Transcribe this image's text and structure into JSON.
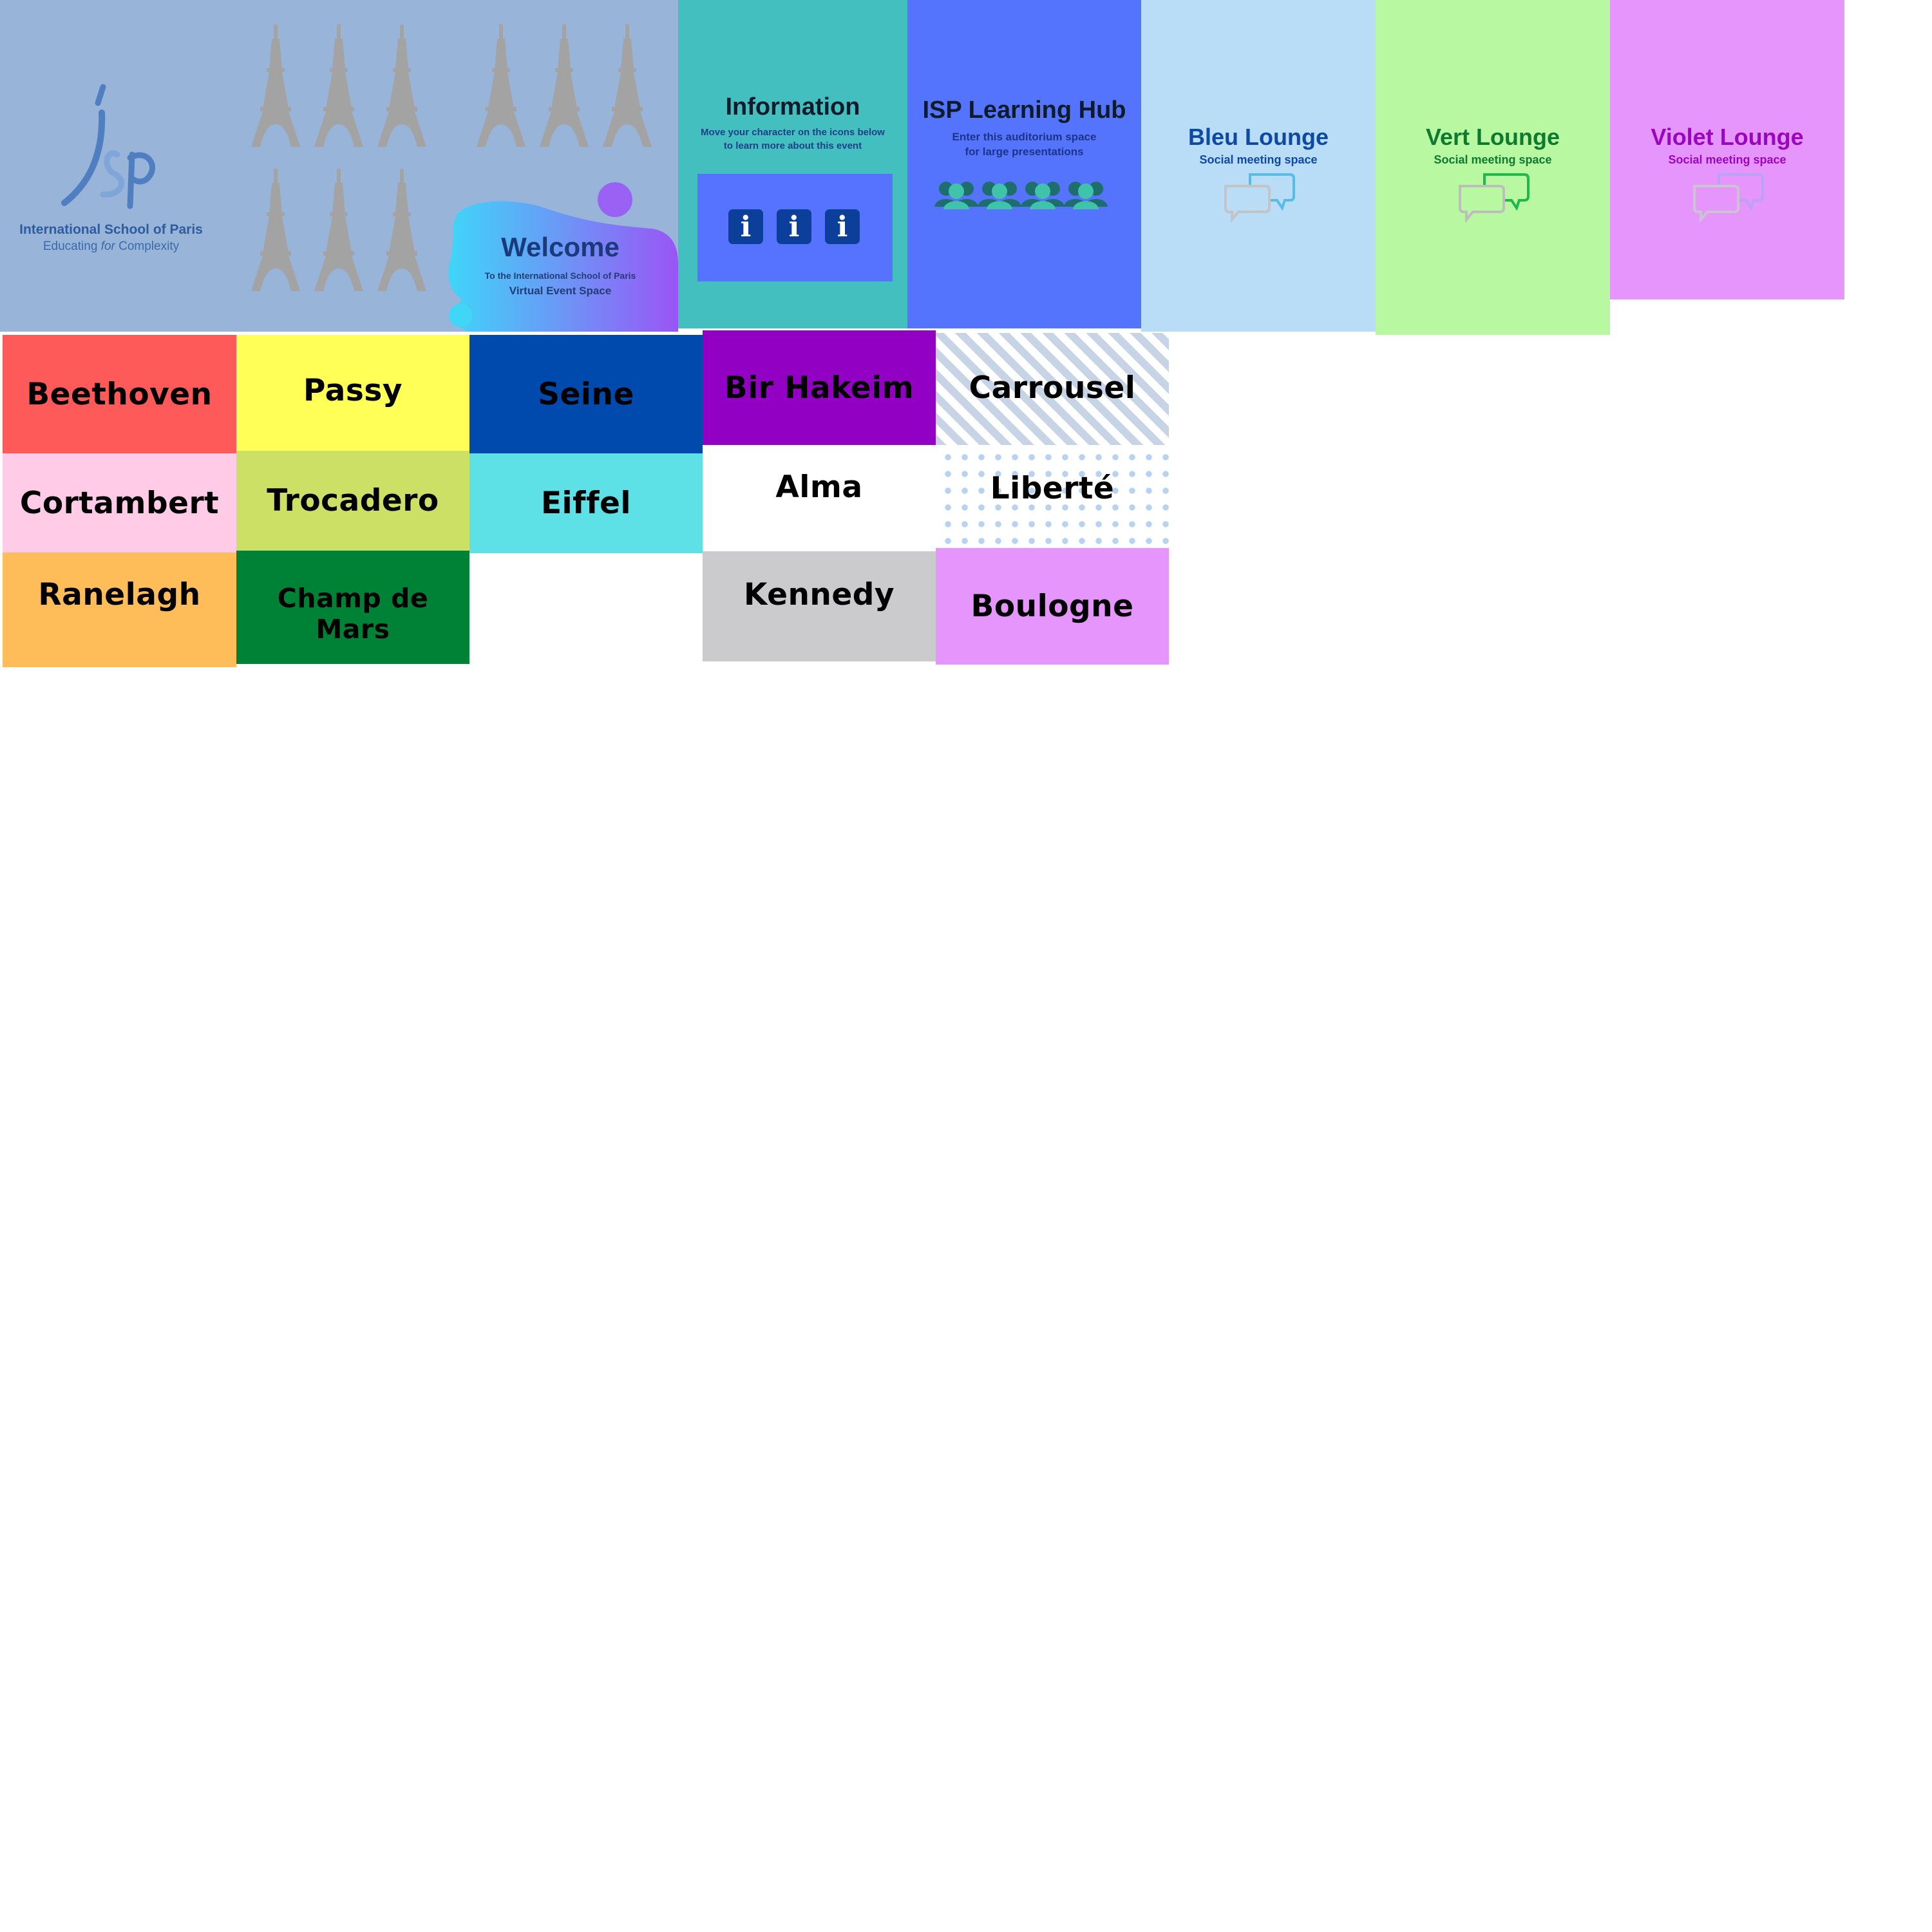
{
  "banner": {
    "school_name": "International School of Paris",
    "tagline_pre": "Educating ",
    "tagline_em": "for",
    "tagline_post": " Complexity",
    "welcome_title": "Welcome",
    "welcome_sub1": "To the International School of Paris",
    "welcome_sub2": "Virtual Event Space"
  },
  "information": {
    "title": "Information",
    "subtitle_line1": "Move your character on the icons below",
    "subtitle_line2": "to learn more about this event",
    "icon_glyph": "i"
  },
  "learning_hub": {
    "title": "ISP Learning Hub",
    "subtitle_line1": "Enter this auditorium space",
    "subtitle_line2": "for large presentations"
  },
  "lounges": [
    {
      "title": "Bleu Lounge",
      "subtitle": "Social meeting space",
      "title_color": "#0e49a3",
      "accent": "#56bde6"
    },
    {
      "title": "Vert Lounge",
      "subtitle": "Social meeting space",
      "title_color": "#0d7a30",
      "accent": "#1fb84a"
    },
    {
      "title": "Violet Lounge",
      "subtitle": "Social meeting space",
      "title_color": "#9a05c0",
      "accent": "#b9a3f5"
    }
  ],
  "rooms": {
    "beethoven": "Beethoven",
    "cortambert": "Cortambert",
    "ranelagh": "Ranelagh",
    "passy": "Passy",
    "trocadero": "Trocadero",
    "champ_de_mars": "Champ de Mars",
    "seine": "Seine",
    "eiffel": "Eiffel",
    "bir_hakeim": "Bir Hakeim",
    "alma": "Alma",
    "kennedy": "Kennedy",
    "carrousel": "Carrousel",
    "liberte": "Liberté",
    "boulogne": "Boulogne"
  },
  "colors": {
    "banner": "#98b4d9",
    "information": "#43bfbf",
    "learning_hub": "#5474fe",
    "beethoven": "#ff5a5a",
    "cortambert": "#ffcbe7",
    "ranelagh": "#ffbd59",
    "passy": "#ffff57",
    "trocadero": "#cbe065",
    "champ_de_mars": "#008236",
    "seine": "#004aad",
    "eiffel": "#5de0e6",
    "bir_hakeim": "#9200c4",
    "alma": "#ffffff",
    "kennedy": "#cbcbcd",
    "boulogne": "#e695fd"
  },
  "icons": [
    "isp-logo",
    "eiffel-tower-icon",
    "info-icon",
    "people-icon",
    "chat-bubbles-icon"
  ]
}
